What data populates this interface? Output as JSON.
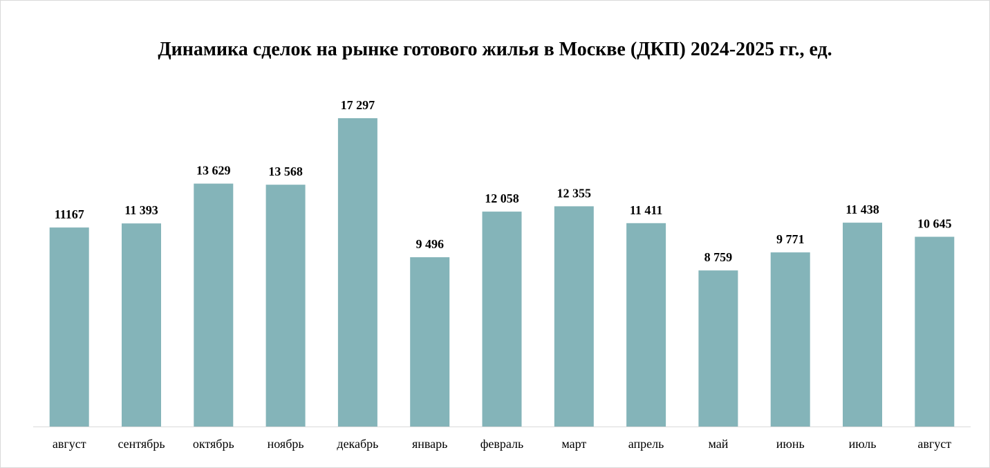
{
  "chart_data": {
    "type": "bar",
    "title": "Динамика сделок на рынке готового жилья в Москве (ДКП) 2024-2025 гг., ед.",
    "categories": [
      "август",
      "сентябрь",
      "октябрь",
      "ноябрь",
      "декабрь",
      "январь",
      "февраль",
      "март",
      "апрель",
      "май",
      "июнь",
      "июль",
      "август"
    ],
    "values": [
      11167,
      11393,
      13629,
      13568,
      17297,
      9496,
      12058,
      12355,
      11411,
      8759,
      9771,
      11438,
      10645
    ],
    "value_labels": [
      "11167",
      "11 393",
      "13 629",
      "13 568",
      "17 297",
      "9 496",
      "12 058",
      "12 355",
      "11 411",
      "8 759",
      "9 771",
      "11 438",
      "10 645"
    ],
    "bar_color": "#84b4b9",
    "axis_color": "#d9d9d9",
    "grid": false,
    "legend": "none",
    "xlabel": "",
    "ylabel": "",
    "ylim": [
      0,
      17297
    ]
  }
}
